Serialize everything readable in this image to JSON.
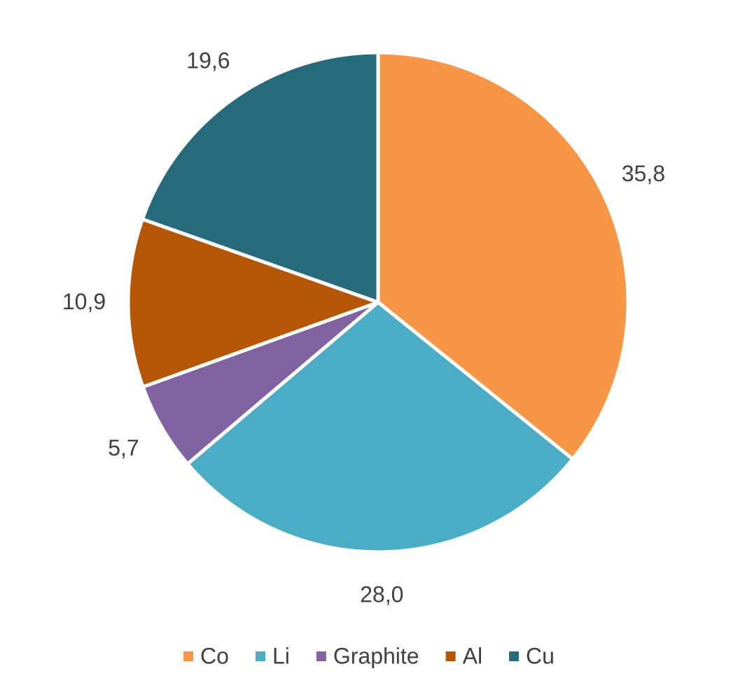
{
  "chart_data": {
    "type": "pie",
    "categories": [
      "Co",
      "Li",
      "Graphite",
      "Al",
      "Cu"
    ],
    "values": [
      35.8,
      28,
      5.7,
      10.9,
      19.6
    ],
    "value_labels": [
      "35,8",
      "28,0",
      "5,7",
      "10,9",
      "19,6"
    ],
    "colors": [
      "#f79646",
      "#4bacc6",
      "#8064a2",
      "#b65708",
      "#276a7c"
    ],
    "legend": "bottom"
  }
}
